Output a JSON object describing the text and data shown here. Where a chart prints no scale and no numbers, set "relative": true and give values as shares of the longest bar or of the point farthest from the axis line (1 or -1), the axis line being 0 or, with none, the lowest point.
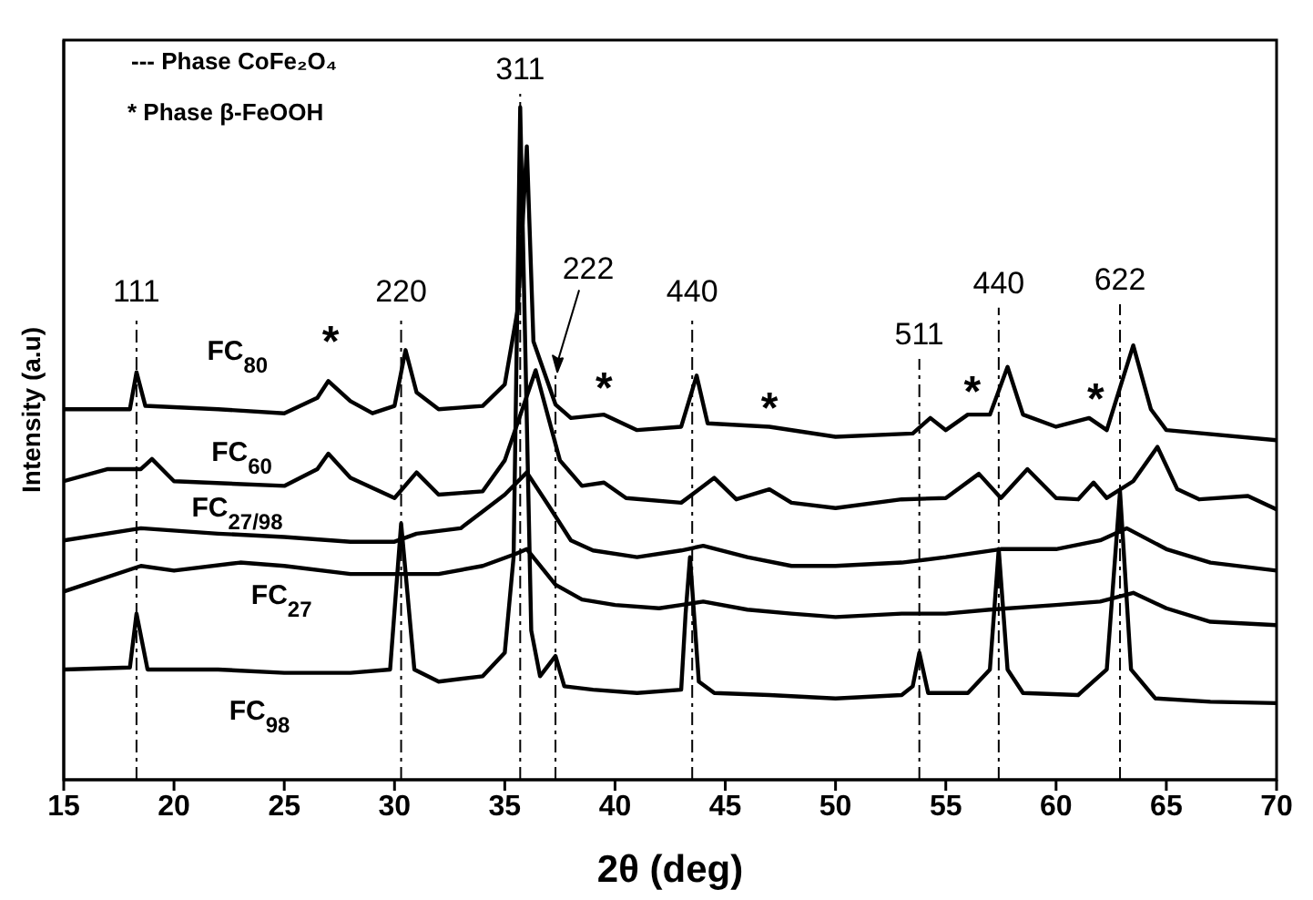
{
  "chart_data": {
    "type": "line",
    "relative": true,
    "xlabel": "2θ (deg)",
    "ylabel": "Intensity (a.u)",
    "xlim": [
      15,
      70
    ],
    "xticks": [
      15,
      20,
      25,
      30,
      35,
      40,
      45,
      50,
      55,
      60,
      65,
      70
    ],
    "tick_labels": "x",
    "line_style": "solid",
    "series": [
      {
        "name": "FC$_{80}$",
        "color": "#000000",
        "x": [
          15,
          18,
          18.3,
          18.7,
          22,
          25,
          26.5,
          27,
          28,
          29,
          30,
          30.5,
          31,
          32,
          34,
          35,
          35.6,
          36,
          36.3,
          37.3,
          38,
          39.5,
          41,
          43,
          43.7,
          44.2,
          47,
          50,
          53.5,
          54.3,
          55,
          56,
          57,
          57.8,
          58.5,
          60,
          61.5,
          62.3,
          63.5,
          64.3,
          65,
          70
        ],
        "values": [
          0.551,
          0.551,
          0.606,
          0.556,
          0.551,
          0.545,
          0.568,
          0.593,
          0.563,
          0.545,
          0.556,
          0.639,
          0.576,
          0.551,
          0.556,
          0.588,
          0.702,
          0.942,
          0.652,
          0.558,
          0.538,
          0.543,
          0.52,
          0.525,
          0.601,
          0.53,
          0.525,
          0.51,
          0.515,
          0.538,
          0.52,
          0.543,
          0.543,
          0.614,
          0.543,
          0.525,
          0.538,
          0.52,
          0.646,
          0.551,
          0.52,
          0.505
        ]
      },
      {
        "name": "FC$_{60}$",
        "color": "#000000",
        "x": [
          15,
          17,
          18.5,
          19,
          20,
          25,
          26.5,
          27,
          28,
          30,
          31,
          32,
          34,
          35,
          36.4,
          37.5,
          38.5,
          39.5,
          40.5,
          43,
          44.5,
          45.5,
          47,
          48,
          50,
          53,
          55,
          56.5,
          57.5,
          58.7,
          60,
          61,
          61.7,
          62.3,
          63.5,
          64.6,
          65.5,
          66.5,
          68.7,
          70
        ],
        "values": [
          0.444,
          0.462,
          0.462,
          0.477,
          0.444,
          0.437,
          0.462,
          0.485,
          0.449,
          0.419,
          0.457,
          0.424,
          0.429,
          0.475,
          0.609,
          0.475,
          0.437,
          0.442,
          0.419,
          0.412,
          0.449,
          0.417,
          0.432,
          0.412,
          0.404,
          0.417,
          0.419,
          0.455,
          0.419,
          0.462,
          0.419,
          0.417,
          0.442,
          0.419,
          0.444,
          0.495,
          0.432,
          0.417,
          0.422,
          0.402
        ]
      },
      {
        "name": "FC$_{27/98}$",
        "color": "#000000",
        "x": [
          15,
          18.5,
          22,
          25,
          28,
          30,
          31,
          33,
          34,
          35,
          36,
          37,
          38,
          39,
          41,
          43,
          44,
          46,
          48,
          50,
          53,
          55,
          57.5,
          60,
          62,
          63.2,
          65,
          67,
          70
        ],
        "values": [
          0.356,
          0.374,
          0.366,
          0.361,
          0.354,
          0.354,
          0.366,
          0.374,
          0.399,
          0.424,
          0.457,
          0.407,
          0.356,
          0.341,
          0.331,
          0.341,
          0.348,
          0.331,
          0.318,
          0.318,
          0.323,
          0.331,
          0.343,
          0.343,
          0.356,
          0.374,
          0.343,
          0.323,
          0.311
        ]
      },
      {
        "name": "FC$_{27}$",
        "color": "#000000",
        "x": [
          15,
          18.5,
          20,
          23,
          25,
          28,
          30,
          32,
          34,
          35.5,
          36,
          37.3,
          38.5,
          40,
          42,
          43,
          44,
          46,
          48,
          50,
          53,
          55,
          57,
          60,
          62,
          63.5,
          65,
          67,
          70
        ],
        "values": [
          0.28,
          0.318,
          0.311,
          0.323,
          0.318,
          0.306,
          0.306,
          0.306,
          0.318,
          0.336,
          0.343,
          0.29,
          0.268,
          0.26,
          0.255,
          0.26,
          0.265,
          0.253,
          0.247,
          0.242,
          0.247,
          0.247,
          0.253,
          0.26,
          0.265,
          0.278,
          0.255,
          0.235,
          0.23
        ]
      },
      {
        "name": "FC$_{98}$",
        "color": "#000000",
        "x": [
          15,
          18,
          18.3,
          18.8,
          22,
          25,
          28,
          29.8,
          30.3,
          30.9,
          32,
          34,
          35,
          35.4,
          35.7,
          36.2,
          36.6,
          37.3,
          37.7,
          39,
          41,
          43,
          43.2,
          43.4,
          43.8,
          44.5,
          47,
          50,
          53,
          53.5,
          53.8,
          54.2,
          56,
          57,
          57.4,
          57.8,
          58.5,
          61,
          62.3,
          62.9,
          63.4,
          64.5,
          67,
          70
        ],
        "values": [
          0.164,
          0.167,
          0.247,
          0.164,
          0.164,
          0.159,
          0.159,
          0.164,
          0.381,
          0.164,
          0.146,
          0.154,
          0.189,
          0.331,
          1,
          0.222,
          0.154,
          0.184,
          0.139,
          0.134,
          0.129,
          0.134,
          0.247,
          0.331,
          0.146,
          0.129,
          0.126,
          0.121,
          0.126,
          0.139,
          0.189,
          0.129,
          0.129,
          0.164,
          0.343,
          0.164,
          0.129,
          0.126,
          0.164,
          0.429,
          0.164,
          0.121,
          0.116,
          0.114
        ]
      }
    ],
    "ref_lines": [
      {
        "axis": "x",
        "value": 18.3,
        "line_style": "dashdot",
        "color": "#000000"
      },
      {
        "axis": "x",
        "value": 30.3,
        "line_style": "dashdot",
        "color": "#000000"
      },
      {
        "axis": "x",
        "value": 35.7,
        "line_style": "dashdot",
        "color": "#000000"
      },
      {
        "axis": "x",
        "value": 37.3,
        "line_style": "dashdot",
        "color": "#000000"
      },
      {
        "axis": "x",
        "value": 43.5,
        "line_style": "dashdot",
        "color": "#000000"
      },
      {
        "axis": "x",
        "value": 53.8,
        "line_style": "dashdot",
        "color": "#000000"
      },
      {
        "axis": "x",
        "value": 57.4,
        "line_style": "dashdot",
        "color": "#000000"
      },
      {
        "axis": "x",
        "value": 62.9,
        "line_style": "dashdot",
        "color": "#000000"
      }
    ],
    "annotations": [
      "--- Phase CoFe₂O₄",
      "* Phase β-FeOOH",
      "*",
      "*",
      "*",
      "*",
      "*",
      "111",
      "220",
      "311",
      "222",
      "440",
      "511",
      "440",
      "622"
    ]
  }
}
